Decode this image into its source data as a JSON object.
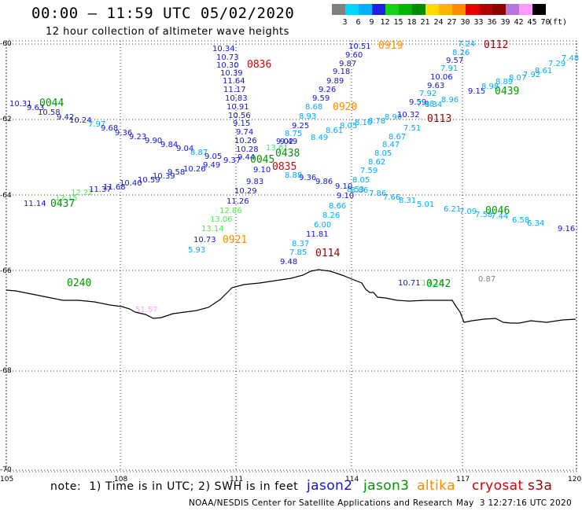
{
  "header": {
    "title": "00:00 – 11:59 UTC 05/02/2020",
    "subtitle": "12 hour collection of altimeter wave heights"
  },
  "colorbar": {
    "labels": [
      "3",
      "6",
      "9",
      "12",
      "15",
      "18",
      "21",
      "24",
      "27",
      "30",
      "33",
      "36",
      "39",
      "42",
      "45",
      "70"
    ],
    "unit": "(ft)",
    "colors": [
      "#808080",
      "#00d8ff",
      "#00b0ff",
      "#1e1ee6",
      "#14d214",
      "#00b400",
      "#008c00",
      "#ffdc00",
      "#ffb400",
      "#ff8c00",
      "#e60000",
      "#b40000",
      "#8c0000",
      "#b478dc",
      "#ff9bff",
      "#000000"
    ]
  },
  "axes": {
    "lon_labels": [
      "105",
      "108",
      "111",
      "114",
      "117",
      "120"
    ],
    "lat_labels": [
      "-60",
      "-62",
      "-64",
      "-66",
      "-68",
      "-70"
    ]
  },
  "footer": {
    "note": "note:  1) Time is in UTC; 2) SWH is in feet",
    "satellites": [
      {
        "name": "jason2",
        "color": "#1414dc"
      },
      {
        "name": "jason3",
        "color": "#009600"
      },
      {
        "name": "altika",
        "color": "#ff8c00"
      },
      {
        "name": "cryosat",
        "color": "#dc0000"
      },
      {
        "name": "s3a",
        "color": "#960000"
      }
    ],
    "credit": "NOAA/NESDIS Center for Satellite Applications and Research",
    "timestamp": "May  3 12:27:16 UTC 2020"
  },
  "map": {
    "pass_times": [
      {
        "text": "0044",
        "color": "#009600"
      },
      {
        "text": "0437",
        "color": "#009600"
      },
      {
        "text": "0240",
        "color": "#009600"
      },
      {
        "text": "0242",
        "color": "#009600"
      },
      {
        "text": "0439",
        "color": "#009600"
      },
      {
        "text": "0046",
        "color": "#009600"
      },
      {
        "text": "0438",
        "color": "#009600"
      },
      {
        "text": "0045",
        "color": "#009600"
      },
      {
        "text": "0836",
        "color": "#dc0000"
      },
      {
        "text": "0835",
        "color": "#dc0000"
      },
      {
        "text": "0919",
        "color": "#ff8c00"
      },
      {
        "text": "0920",
        "color": "#ff8c00"
      },
      {
        "text": "0921",
        "color": "#ff8c00"
      },
      {
        "text": "0112",
        "color": "#960000"
      },
      {
        "text": "0113",
        "color": "#960000"
      },
      {
        "text": "0114",
        "color": "#960000"
      }
    ],
    "points": [
      {
        "v": "10.31",
        "c": "#1414dc"
      },
      {
        "v": "9.63",
        "c": "#1414dc"
      },
      {
        "v": "10.58",
        "c": "#1414dc"
      },
      {
        "v": "9.42",
        "c": "#1414dc"
      },
      {
        "v": "10.24",
        "c": "#1414dc"
      },
      {
        "v": "7.97",
        "c": "#00aaff"
      },
      {
        "v": "9.68",
        "c": "#1414dc"
      },
      {
        "v": "9.36",
        "c": "#1414dc"
      },
      {
        "v": "9.23",
        "c": "#1414dc"
      },
      {
        "v": "9.90",
        "c": "#1414dc"
      },
      {
        "v": "9.84",
        "c": "#1414dc"
      },
      {
        "v": "9.04",
        "c": "#1414dc"
      },
      {
        "v": "8.87",
        "c": "#00aaff"
      },
      {
        "v": "9.05",
        "c": "#1414dc"
      },
      {
        "v": "10.34",
        "c": "#1414dc"
      },
      {
        "v": "10.73",
        "c": "#1414dc"
      },
      {
        "v": "10.30",
        "c": "#1414dc"
      },
      {
        "v": "10.39",
        "c": "#1414dc"
      },
      {
        "v": "11.64",
        "c": "#1414dc"
      },
      {
        "v": "11.17",
        "c": "#1414dc"
      },
      {
        "v": "10.83",
        "c": "#1414dc"
      },
      {
        "v": "10.91",
        "c": "#1414dc"
      },
      {
        "v": "10.56",
        "c": "#1414dc"
      },
      {
        "v": "9.15",
        "c": "#1414dc"
      },
      {
        "v": "9.74",
        "c": "#1414dc"
      },
      {
        "v": "10.26",
        "c": "#1414dc"
      },
      {
        "v": "10.28",
        "c": "#1414dc"
      },
      {
        "v": "9.83",
        "c": "#1414dc"
      },
      {
        "v": "10.29",
        "c": "#1414dc"
      },
      {
        "v": "11.26",
        "c": "#1414dc"
      },
      {
        "v": "12.86",
        "c": "#50e650"
      },
      {
        "v": "13.06",
        "c": "#50e650"
      },
      {
        "v": "13.14",
        "c": "#50e650"
      },
      {
        "v": "10.73",
        "c": "#1414dc"
      },
      {
        "v": "5.93",
        "c": "#00aaff"
      },
      {
        "v": "10.51",
        "c": "#1414dc"
      },
      {
        "v": "9.60",
        "c": "#1414dc"
      },
      {
        "v": "9.87",
        "c": "#1414dc"
      },
      {
        "v": "9.18",
        "c": "#1414dc"
      },
      {
        "v": "9.89",
        "c": "#1414dc"
      },
      {
        "v": "9.26",
        "c": "#1414dc"
      },
      {
        "v": "9.59",
        "c": "#1414dc"
      },
      {
        "v": "8.68",
        "c": "#00aaff"
      },
      {
        "v": "8.93",
        "c": "#00aaff"
      },
      {
        "v": "9.25",
        "c": "#1414dc"
      },
      {
        "v": "8.75",
        "c": "#00aaff"
      },
      {
        "v": "9.02",
        "c": "#1414dc"
      },
      {
        "v": "8.49",
        "c": "#00aaff"
      },
      {
        "v": "8.61",
        "c": "#00aaff"
      },
      {
        "v": "8.05",
        "c": "#00aaff"
      },
      {
        "v": "8.10",
        "c": "#00aaff"
      },
      {
        "v": "8.78",
        "c": "#00aaff"
      },
      {
        "v": "8.90",
        "c": "#00aaff"
      },
      {
        "v": "10.32",
        "c": "#1414dc"
      },
      {
        "v": "9.59",
        "c": "#1414dc"
      },
      {
        "v": "8.34",
        "c": "#00aaff"
      },
      {
        "v": "8.96",
        "c": "#00aaff"
      },
      {
        "v": "9.15",
        "c": "#1414dc"
      },
      {
        "v": "8.98",
        "c": "#00aaff"
      },
      {
        "v": "8.89",
        "c": "#00aaff"
      },
      {
        "v": "8.07",
        "c": "#00aaff"
      },
      {
        "v": "7.92",
        "c": "#00aaff"
      },
      {
        "v": "8.61",
        "c": "#00aaff"
      },
      {
        "v": "7.29",
        "c": "#00aaff"
      },
      {
        "v": "7.48",
        "c": "#00aaff"
      },
      {
        "v": "7.24",
        "c": "#00aaff"
      },
      {
        "v": "8.26",
        "c": "#00aaff"
      },
      {
        "v": "9.57",
        "c": "#1414dc"
      },
      {
        "v": "7.91",
        "c": "#00aaff"
      },
      {
        "v": "10.06",
        "c": "#1414dc"
      },
      {
        "v": "9.63",
        "c": "#1414dc"
      },
      {
        "v": "7.92",
        "c": "#00aaff"
      },
      {
        "v": "7.48",
        "c": "#00aaff"
      },
      {
        "v": "7.51",
        "c": "#00aaff"
      },
      {
        "v": "8.67",
        "c": "#00aaff"
      },
      {
        "v": "8.47",
        "c": "#00aaff"
      },
      {
        "v": "8.05",
        "c": "#00aaff"
      },
      {
        "v": "8.62",
        "c": "#00aaff"
      },
      {
        "v": "7.59",
        "c": "#00aaff"
      },
      {
        "v": "8.05",
        "c": "#00aaff"
      },
      {
        "v": "8.53",
        "c": "#00aaff"
      },
      {
        "v": "9.10",
        "c": "#1414dc"
      },
      {
        "v": "8.66",
        "c": "#00aaff"
      },
      {
        "v": "8.26",
        "c": "#00aaff"
      },
      {
        "v": "6.00",
        "c": "#00aaff"
      },
      {
        "v": "11.81",
        "c": "#1414dc"
      },
      {
        "v": "8.37",
        "c": "#00aaff"
      },
      {
        "v": "7.85",
        "c": "#00aaff"
      },
      {
        "v": "9.48",
        "c": "#1414dc"
      },
      {
        "v": "9.36",
        "c": "#1414dc"
      },
      {
        "v": "9.86",
        "c": "#1414dc"
      },
      {
        "v": "9.10",
        "c": "#1414dc"
      },
      {
        "v": "8.86",
        "c": "#00aaff"
      },
      {
        "v": "7.86",
        "c": "#00aaff"
      },
      {
        "v": "7.66",
        "c": "#00aaff"
      },
      {
        "v": "8.31",
        "c": "#00aaff"
      },
      {
        "v": "5.01",
        "c": "#00aaff"
      },
      {
        "v": "6.21",
        "c": "#00aaff"
      },
      {
        "v": "7.09",
        "c": "#00aaff"
      },
      {
        "v": "7.58",
        "c": "#00aaff"
      },
      {
        "v": "7.44",
        "c": "#00aaff"
      },
      {
        "v": "6.58",
        "c": "#00aaff"
      },
      {
        "v": "6.34",
        "c": "#00aaff"
      },
      {
        "v": "9.16",
        "c": "#1414dc"
      },
      {
        "v": "11.14",
        "c": "#1414dc"
      },
      {
        "v": "12.15",
        "c": "#50e650"
      },
      {
        "v": "12.22",
        "c": "#50e650"
      },
      {
        "v": "11.37",
        "c": "#1414dc"
      },
      {
        "v": "11.68",
        "c": "#1414dc"
      },
      {
        "v": "10.40",
        "c": "#1414dc"
      },
      {
        "v": "10.59",
        "c": "#1414dc"
      },
      {
        "v": "10.39",
        "c": "#1414dc"
      },
      {
        "v": "9.58",
        "c": "#1414dc"
      },
      {
        "v": "10.26",
        "c": "#1414dc"
      },
      {
        "v": "9.49",
        "c": "#1414dc"
      },
      {
        "v": "9.37",
        "c": "#1414dc"
      },
      {
        "v": "9.44",
        "c": "#1414dc"
      },
      {
        "v": "9.10",
        "c": "#1414dc"
      },
      {
        "v": "8.88",
        "c": "#00aaff"
      },
      {
        "v": "9.49",
        "c": "#1414dc"
      },
      {
        "v": "13.61",
        "c": "#50e650"
      },
      {
        "v": "10.71",
        "c": "#1414dc"
      },
      {
        "v": "13.15",
        "c": "#50e650"
      },
      {
        "v": "0.87",
        "c": "#808080"
      },
      {
        "v": "51.57",
        "c": "#ffa0ff"
      }
    ]
  }
}
